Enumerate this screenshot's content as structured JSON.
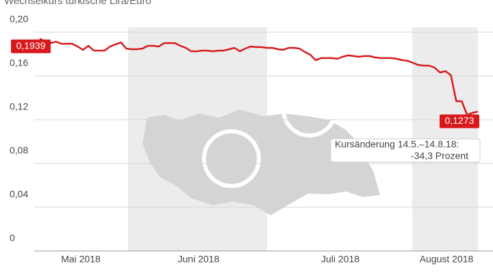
{
  "chart_data": {
    "type": "line",
    "title": "Wechselkurs türkische Lira/Euro",
    "month_labels": [
      "Mai 2018",
      "Juni 2018",
      "Juli 2018",
      "August 2018"
    ],
    "series": [
      {
        "name": "Lira/Euro",
        "color": "#d7191c",
        "values": [
          0.1939,
          0.1919,
          0.19,
          0.1913,
          0.1894,
          0.1894,
          0.1894,
          0.1869,
          0.1838,
          0.1875,
          0.1831,
          0.1831,
          0.1831,
          0.1869,
          0.1888,
          0.1906,
          0.185,
          0.1844,
          0.1844,
          0.185,
          0.1875,
          0.1875,
          0.1869,
          0.19,
          0.19,
          0.19,
          0.1875,
          0.1856,
          0.1825,
          0.1825,
          0.1831,
          0.1831,
          0.1825,
          0.1831,
          0.1831,
          0.1844,
          0.1856,
          0.1825,
          0.185,
          0.1869,
          0.1863,
          0.1863,
          0.1856,
          0.1856,
          0.1844,
          0.1838,
          0.1856,
          0.1856,
          0.185,
          0.1819,
          0.1794,
          0.1744,
          0.1763,
          0.1763,
          0.1763,
          0.1756,
          0.1775,
          0.1788,
          0.1781,
          0.1775,
          0.1781,
          0.1781,
          0.1769,
          0.1763,
          0.1763,
          0.1763,
          0.1756,
          0.1744,
          0.1738,
          0.1719,
          0.17,
          0.1694,
          0.1694,
          0.1675,
          0.1631,
          0.1644,
          0.1606,
          0.1369,
          0.1369,
          0.1244,
          0.1263,
          0.1273
        ],
        "value_labels": [
          "0,1939",
          null,
          null,
          null,
          null,
          null,
          null,
          null,
          null,
          null,
          null,
          null,
          null,
          null,
          null,
          null,
          null,
          null,
          null,
          null,
          null,
          null,
          null,
          null,
          null,
          null,
          null,
          null,
          null,
          null,
          null,
          null,
          null,
          null,
          null,
          null,
          null,
          null,
          null,
          null,
          null,
          null,
          null,
          null,
          null,
          null,
          null,
          null,
          null,
          null,
          null,
          null,
          null,
          null,
          null,
          null,
          null,
          null,
          null,
          null,
          null,
          null,
          null,
          null,
          null,
          null,
          null,
          null,
          null,
          null,
          null,
          null,
          null,
          null,
          null,
          null,
          null,
          null,
          null,
          null,
          null,
          "0,1273"
        ]
      }
    ],
    "annotation": [
      "Kursänderung 14.5.–14.8.18:",
      "-34,3 Prozent"
    ],
    "ylim": [
      0,
      0.2
    ],
    "yticks": [
      0,
      {
        "value": 0.04,
        "label": "0,04"
      },
      {
        "value": 0.08,
        "label": "0,08"
      },
      {
        "value": 0.12,
        "label": "0,12"
      },
      {
        "value": 0.16,
        "label": "0,16"
      },
      {
        "value": 0.2,
        "label": "0,20"
      }
    ],
    "grid": true
  }
}
